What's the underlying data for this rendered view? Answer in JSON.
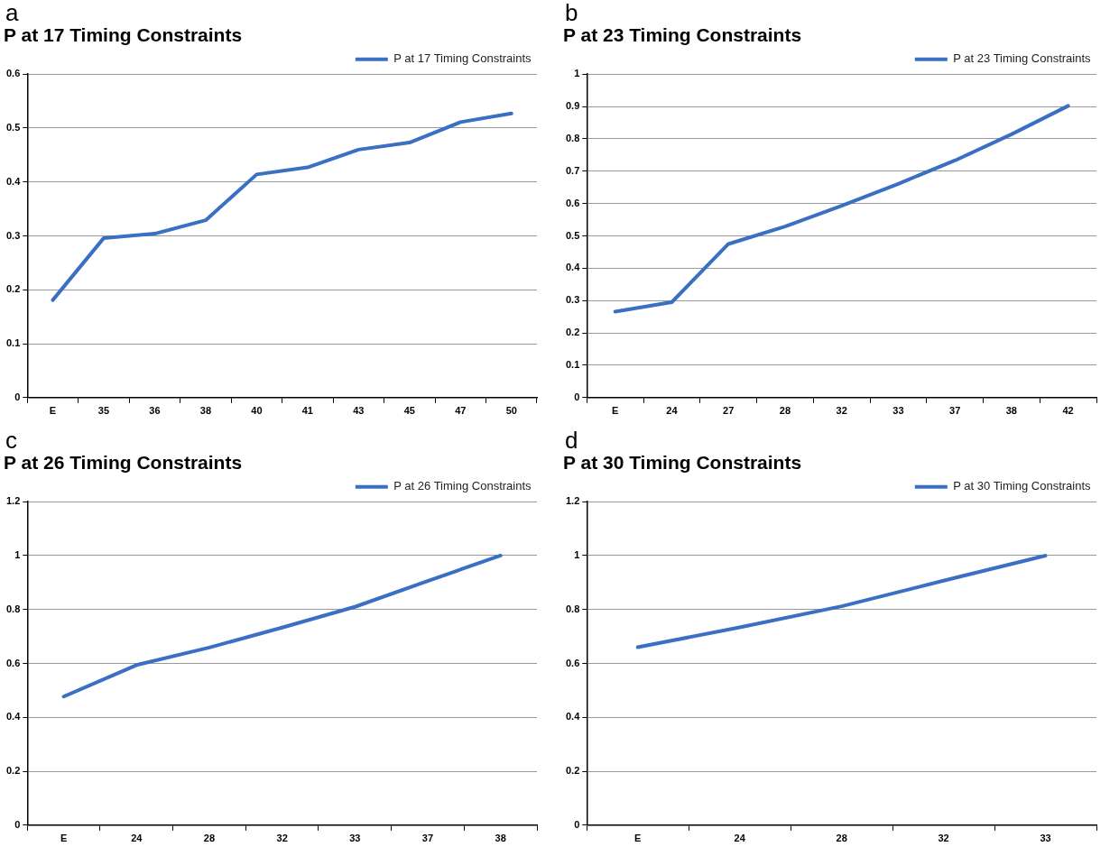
{
  "chart_data": [
    {
      "type": "line",
      "title": "P at 17 Timing Constraints",
      "annotations": [
        "a"
      ],
      "categories": [
        "E",
        "35",
        "36",
        "38",
        "40",
        "41",
        "43",
        "45",
        "47",
        "50"
      ],
      "series": [
        {
          "name": "P at 17 Timing Constraints",
          "color": "#3a6fc4",
          "values": [
            0.181,
            0.296,
            0.304,
            0.329,
            0.414,
            0.427,
            0.46,
            0.473,
            0.511,
            0.527
          ]
        }
      ],
      "ylim": [
        0,
        0.6
      ],
      "yticks": [
        0,
        0.1,
        0.2,
        0.3,
        0.4,
        0.5,
        0.6
      ],
      "grid": "y",
      "legend": "top right",
      "marker": "none",
      "line_style": "solid"
    },
    {
      "type": "line",
      "title": "P at 23 Timing Constraints",
      "annotations": [
        "b"
      ],
      "categories": [
        "E",
        "24",
        "27",
        "28",
        "32",
        "33",
        "37",
        "38",
        "42"
      ],
      "series": [
        {
          "name": "P at 23 Timing Constraints",
          "color": "#3a6fc4",
          "values": [
            0.266,
            0.295,
            0.475,
            0.529,
            0.593,
            0.661,
            0.733,
            0.814,
            0.902
          ]
        }
      ],
      "ylim": [
        0,
        1
      ],
      "yticks": [
        0,
        0.1,
        0.2,
        0.3,
        0.4,
        0.5,
        0.6,
        0.7,
        0.8,
        0.9,
        1
      ],
      "grid": "y",
      "legend": "top right",
      "marker": "none",
      "line_style": "solid"
    },
    {
      "type": "line",
      "title": "P at 26 Timing Constraints",
      "annotations": [
        "c"
      ],
      "categories": [
        "E",
        "24",
        "28",
        "32",
        "33",
        "37",
        "38"
      ],
      "series": [
        {
          "name": "P at 26 Timing Constraints",
          "color": "#3a6fc4",
          "values": [
            0.477,
            0.594,
            0.659,
            0.733,
            0.81,
            0.906,
            1.0
          ]
        }
      ],
      "ylim": [
        0,
        1.2
      ],
      "yticks": [
        0,
        0.2,
        0.4,
        0.6,
        0.8,
        1,
        1.2
      ],
      "grid": "y",
      "legend": "top right",
      "marker": "none",
      "line_style": "solid"
    },
    {
      "type": "line",
      "title": "P at 30 Timing Constraints",
      "annotations": [
        "d"
      ],
      "categories": [
        "E",
        "24",
        "28",
        "32",
        "33"
      ],
      "series": [
        {
          "name": "P at 30 Timing Constraints",
          "color": "#3a6fc4",
          "values": [
            0.66,
            0.734,
            0.812,
            0.907,
            1.0
          ]
        }
      ],
      "ylim": [
        0,
        1.2
      ],
      "yticks": [
        0,
        0.2,
        0.4,
        0.6,
        0.8,
        1,
        1.2
      ],
      "grid": "y",
      "legend": "top right",
      "marker": "none",
      "line_style": "solid"
    }
  ]
}
